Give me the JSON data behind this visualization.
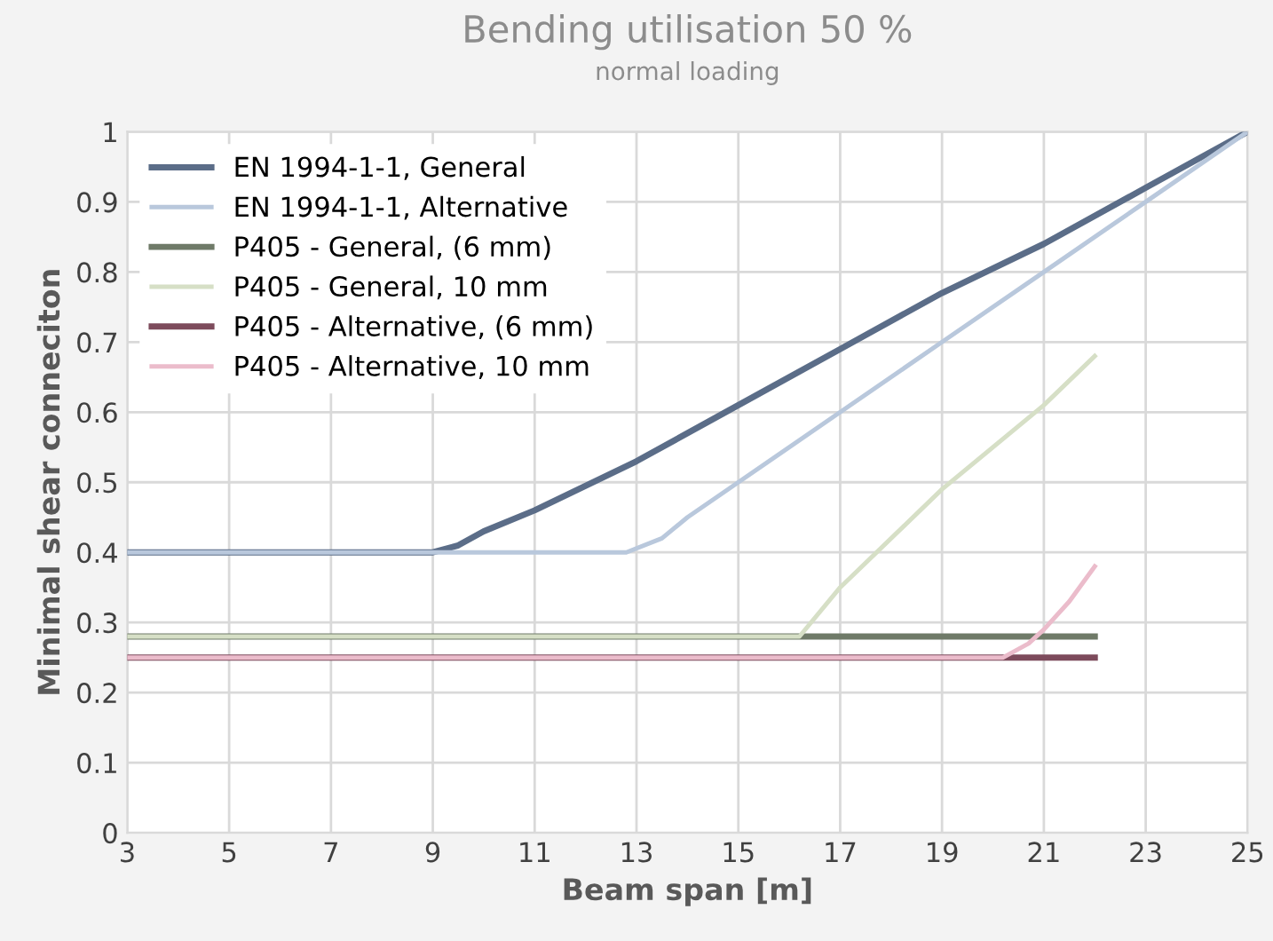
{
  "chart_data": {
    "type": "line",
    "title": "Bending utilisation 50 %",
    "subtitle": "normal loading",
    "xlabel": "Beam span [m]",
    "ylabel": "Minimal shear conneciton",
    "xlim": [
      3,
      25
    ],
    "xticks": [
      3,
      5,
      7,
      9,
      11,
      13,
      15,
      17,
      19,
      21,
      23,
      25
    ],
    "ylim": [
      0,
      1
    ],
    "yticks": [
      0,
      0.1,
      0.2,
      0.3,
      0.4,
      0.5,
      0.6,
      0.7,
      0.8,
      0.9,
      1
    ],
    "grid": true,
    "legend": "top left",
    "marker": "none",
    "line_style": "solid",
    "series": [
      {
        "name": "EN 1994-1-1, General",
        "color": "#5b6d88",
        "x": [
          3,
          5,
          7,
          8.5,
          9,
          9.5,
          10,
          11,
          13,
          15,
          17,
          19,
          21,
          23,
          25
        ],
        "values": [
          0.4,
          0.4,
          0.4,
          0.4,
          0.4,
          0.41,
          0.43,
          0.46,
          0.53,
          0.61,
          0.69,
          0.77,
          0.84,
          0.92,
          1.0
        ]
      },
      {
        "name": "EN 1994-1-1, Alternative",
        "color": "#b9c8dc",
        "x": [
          3,
          5,
          7,
          9,
          11,
          12.8,
          13.5,
          14,
          15,
          17,
          19,
          21,
          23,
          25
        ],
        "values": [
          0.4,
          0.4,
          0.4,
          0.4,
          0.4,
          0.4,
          0.42,
          0.45,
          0.5,
          0.6,
          0.7,
          0.8,
          0.9,
          1.0
        ]
      },
      {
        "name": "P405 - General, (6 mm)",
        "color": "#6f7a68",
        "x": [
          3,
          22
        ],
        "values": [
          0.28,
          0.28
        ]
      },
      {
        "name": "P405 - General, 10 mm",
        "color": "#d6dfc6",
        "x": [
          3,
          15.5,
          16.2,
          17,
          19,
          21,
          22
        ],
        "values": [
          0.28,
          0.28,
          0.28,
          0.35,
          0.49,
          0.61,
          0.68
        ]
      },
      {
        "name": "P405 - Alternative, (6 mm)",
        "color": "#7d4b5c",
        "x": [
          3,
          22
        ],
        "values": [
          0.25,
          0.25
        ]
      },
      {
        "name": "P405 - Alternative, 10 mm",
        "color": "#ebbccb",
        "x": [
          3,
          19.5,
          20.2,
          20.7,
          21,
          21.5,
          22
        ],
        "values": [
          0.25,
          0.25,
          0.25,
          0.27,
          0.29,
          0.33,
          0.38
        ]
      }
    ]
  }
}
